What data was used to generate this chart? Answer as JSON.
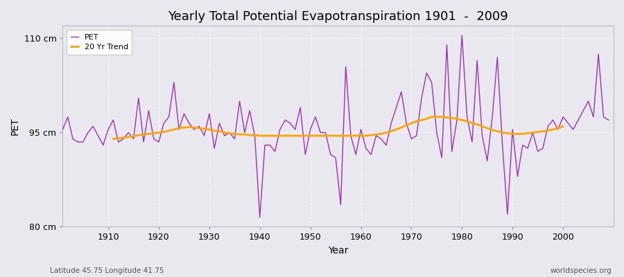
{
  "title": "Yearly Total Potential Evapotranspiration 1901  -  2009",
  "xlabel": "Year",
  "ylabel": "PET",
  "bottom_left_label": "Latitude 45.75 Longitude 41.75",
  "bottom_right_label": "worldspecies.org",
  "ylim": [
    80,
    112
  ],
  "yticks": [
    80,
    95,
    110
  ],
  "ytick_labels": [
    "80 cm",
    "95 cm",
    "110 cm"
  ],
  "pet_color": "#9B30BE",
  "trend_color": "#FFA500",
  "background_color": "#E8E8EE",
  "plot_background": "#E8E8EE",
  "legend_labels": [
    "PET",
    "20 Yr Trend"
  ],
  "years": [
    1901,
    1902,
    1903,
    1904,
    1905,
    1906,
    1907,
    1908,
    1909,
    1910,
    1911,
    1912,
    1913,
    1914,
    1915,
    1916,
    1917,
    1918,
    1919,
    1920,
    1921,
    1922,
    1923,
    1924,
    1925,
    1926,
    1927,
    1928,
    1929,
    1930,
    1931,
    1932,
    1933,
    1934,
    1935,
    1936,
    1937,
    1938,
    1939,
    1940,
    1941,
    1942,
    1943,
    1944,
    1945,
    1946,
    1947,
    1948,
    1949,
    1950,
    1951,
    1952,
    1953,
    1954,
    1955,
    1956,
    1957,
    1958,
    1959,
    1960,
    1961,
    1962,
    1963,
    1964,
    1965,
    1966,
    1967,
    1968,
    1969,
    1970,
    1971,
    1972,
    1973,
    1974,
    1975,
    1976,
    1977,
    1978,
    1979,
    1980,
    1981,
    1982,
    1983,
    1984,
    1985,
    1986,
    1987,
    1988,
    1989,
    1990,
    1991,
    1992,
    1993,
    1994,
    1995,
    1996,
    1997,
    1998,
    1999,
    2000,
    2001,
    2002,
    2003,
    2004,
    2005,
    2006,
    2007,
    2008,
    2009
  ],
  "pet_values": [
    95.5,
    97.5,
    94.0,
    93.5,
    93.5,
    95.0,
    96.0,
    94.5,
    93.0,
    95.5,
    97.0,
    93.5,
    94.0,
    95.0,
    94.0,
    100.5,
    93.5,
    98.5,
    94.0,
    93.5,
    96.5,
    97.5,
    103.0,
    95.5,
    98.0,
    96.5,
    95.5,
    96.0,
    94.5,
    98.0,
    92.5,
    96.5,
    94.5,
    95.0,
    94.0,
    100.0,
    95.0,
    98.5,
    94.5,
    81.5,
    93.0,
    93.0,
    92.0,
    95.5,
    97.0,
    96.5,
    95.5,
    99.0,
    91.5,
    95.5,
    97.5,
    95.0,
    95.0,
    91.5,
    91.0,
    83.5,
    105.5,
    94.5,
    91.5,
    95.5,
    92.5,
    91.5,
    94.5,
    94.0,
    93.0,
    96.5,
    99.0,
    101.5,
    96.5,
    94.0,
    94.5,
    100.5,
    104.5,
    103.0,
    95.0,
    91.0,
    109.0,
    92.0,
    97.0,
    110.5,
    97.5,
    93.5,
    106.5,
    94.5,
    90.5,
    97.5,
    107.0,
    93.0,
    82.0,
    95.5,
    88.0,
    93.0,
    92.5,
    95.0,
    92.0,
    92.5,
    96.0,
    97.0,
    95.5,
    97.5,
    96.5,
    95.5,
    97.0,
    98.5,
    100.0,
    97.5,
    107.5,
    97.5,
    97.0
  ],
  "trend_values": [
    null,
    null,
    null,
    null,
    null,
    null,
    null,
    null,
    null,
    null,
    94.0,
    94.1,
    94.2,
    94.3,
    94.4,
    94.6,
    94.7,
    94.8,
    94.9,
    95.0,
    95.1,
    95.3,
    95.5,
    95.7,
    95.8,
    95.9,
    95.8,
    95.7,
    95.6,
    95.5,
    95.3,
    95.2,
    95.0,
    94.9,
    94.8,
    94.7,
    94.7,
    94.6,
    94.6,
    94.5,
    94.5,
    94.5,
    94.5,
    94.5,
    94.5,
    94.5,
    94.5,
    94.5,
    94.5,
    94.5,
    94.5,
    94.5,
    94.5,
    94.5,
    94.5,
    94.5,
    94.5,
    94.5,
    94.5,
    94.5,
    94.5,
    94.6,
    94.7,
    94.8,
    95.0,
    95.2,
    95.5,
    95.8,
    96.2,
    96.5,
    96.8,
    97.0,
    97.2,
    97.5,
    97.5,
    97.5,
    97.4,
    97.3,
    97.2,
    97.0,
    96.8,
    96.5,
    96.3,
    96.0,
    95.7,
    95.4,
    95.2,
    95.0,
    94.9,
    94.8,
    94.8,
    94.8,
    94.9,
    95.0,
    95.1,
    95.2,
    95.3,
    95.5,
    95.7,
    96.0,
    null,
    null,
    null,
    null,
    null,
    null,
    null,
    null,
    null
  ]
}
